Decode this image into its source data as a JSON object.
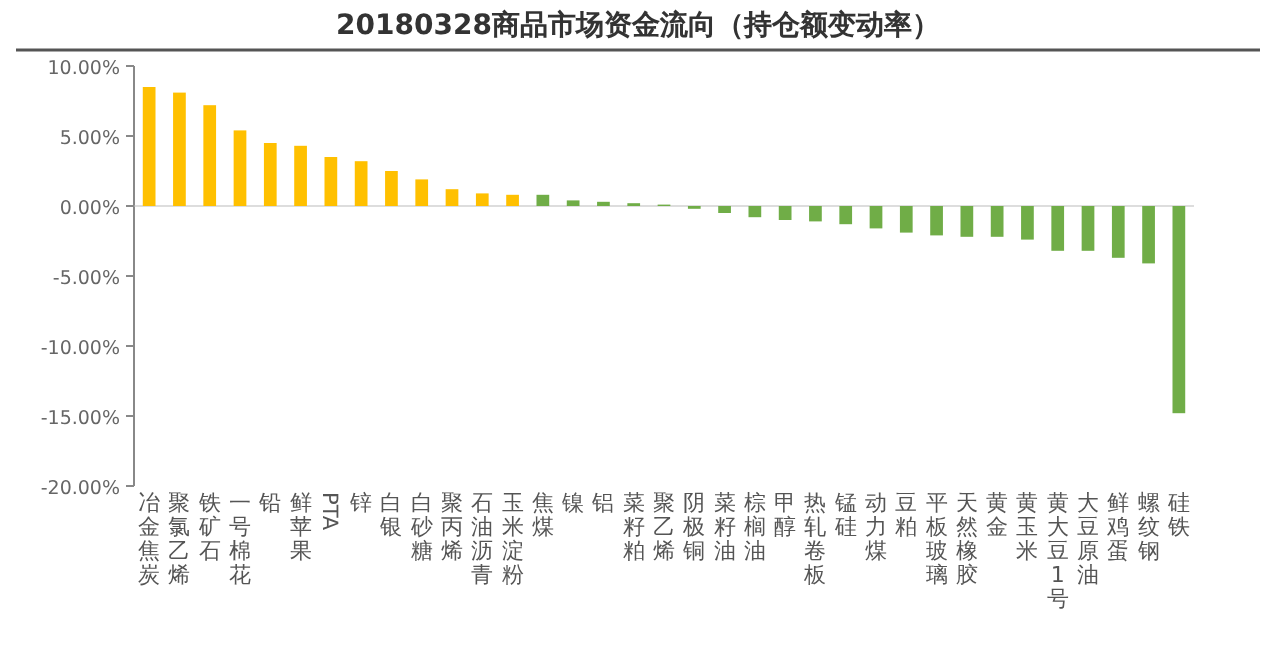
{
  "chart_data": {
    "type": "bar",
    "title": "20180328商品市场资金流向（持仓额变动率）",
    "categories": [
      "冶金焦炭",
      "聚氯乙烯",
      "铁矿石",
      "一号棉花",
      "铅",
      "鲜苹果",
      "PTA",
      "锌",
      "白银",
      "白砂糖",
      "聚丙烯",
      "石油沥青",
      "玉米淀粉",
      "焦煤",
      "镍",
      "铝",
      "菜籽粕",
      "聚乙烯",
      "阴极铜",
      "菜籽油",
      "棕榈油",
      "甲醇",
      "热轧卷板",
      "锰硅",
      "动力煤",
      "豆粕",
      "平板玻璃",
      "天然橡胶",
      "黄金",
      "黄玉米",
      "黄大豆1号",
      "大豆原油",
      "鲜鸡蛋",
      "螺纹钢",
      "硅铁"
    ],
    "values": [
      8.5,
      8.1,
      7.2,
      5.4,
      4.5,
      4.3,
      3.5,
      3.2,
      2.5,
      1.9,
      1.2,
      0.9,
      0.8,
      0.8,
      0.4,
      0.3,
      0.2,
      0.1,
      -0.2,
      -0.5,
      -0.8,
      -1.0,
      -1.1,
      -1.3,
      -1.6,
      -1.9,
      -2.1,
      -2.2,
      -2.2,
      -2.4,
      -3.2,
      -3.2,
      -3.7,
      -4.1,
      -14.8
    ],
    "colors": [
      "#ffc000",
      "#ffc000",
      "#ffc000",
      "#ffc000",
      "#ffc000",
      "#ffc000",
      "#ffc000",
      "#ffc000",
      "#ffc000",
      "#ffc000",
      "#ffc000",
      "#ffc000",
      "#ffc000",
      "#70ad47",
      "#70ad47",
      "#70ad47",
      "#70ad47",
      "#70ad47",
      "#70ad47",
      "#70ad47",
      "#70ad47",
      "#70ad47",
      "#70ad47",
      "#70ad47",
      "#70ad47",
      "#70ad47",
      "#70ad47",
      "#70ad47",
      "#70ad47",
      "#70ad47",
      "#70ad47",
      "#70ad47",
      "#70ad47",
      "#70ad47",
      "#70ad47"
    ],
    "ylim": [
      -20,
      10
    ],
    "yticks": [
      {
        "value": 10,
        "label": "10.00%"
      },
      {
        "value": 5,
        "label": "5.00%"
      },
      {
        "value": 0,
        "label": "0.00%"
      },
      {
        "value": -5,
        "label": "-5.00%"
      },
      {
        "value": -10,
        "label": "-10.00%"
      },
      {
        "value": -15,
        "label": "-15.00%"
      },
      {
        "value": -20,
        "label": "-20.00%"
      }
    ],
    "relative": false
  }
}
